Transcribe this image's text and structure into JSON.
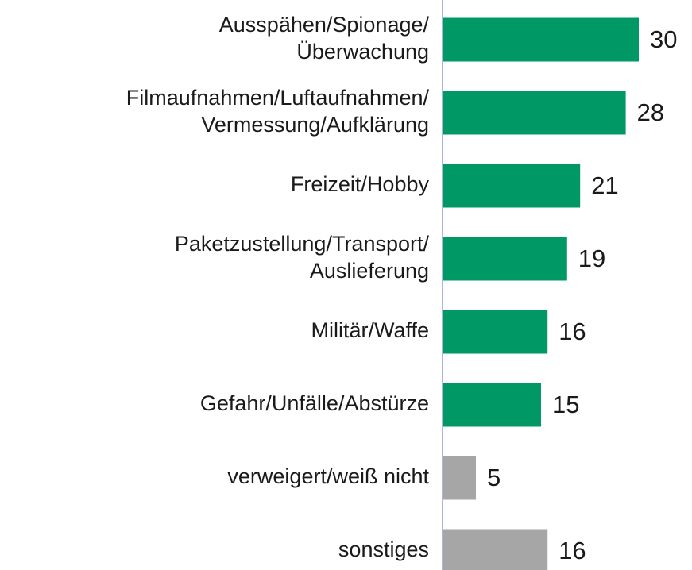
{
  "chart_data": {
    "type": "bar",
    "orientation": "horizontal",
    "categories": [
      "Ausspähen/Spionage/\nÜberwachung",
      "Filmaufnahmen/Luftaufnahmen/\nVermessung/Aufklärung",
      "Freizeit/Hobby",
      "Paketzustellung/Transport/\nAuslieferung",
      "Militär/Waffe",
      "Gefahr/Unfälle/Abstürze",
      "verweigert/weiß nicht",
      "sonstiges"
    ],
    "values": [
      30,
      28,
      21,
      19,
      16,
      15,
      5,
      16
    ],
    "colors": [
      "#009966",
      "#009966",
      "#009966",
      "#009966",
      "#009966",
      "#009966",
      "#a6a6a6",
      "#a6a6a6"
    ]
  }
}
